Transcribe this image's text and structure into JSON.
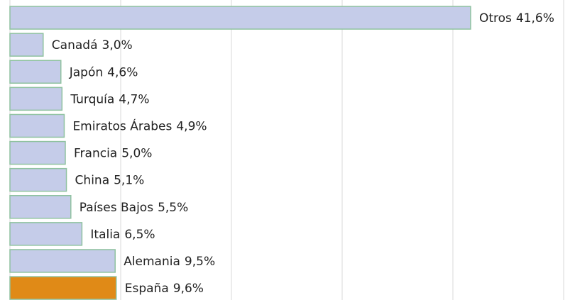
{
  "chart_data": {
    "type": "barh",
    "categories": [
      "Otros",
      "Canadá",
      "Japón",
      "Turquía",
      "Emiratos Árabes",
      "Francia",
      "China",
      "Países Bajos",
      "Italia",
      "Alemania",
      "España"
    ],
    "values": [
      41.6,
      3.0,
      4.6,
      4.7,
      4.9,
      5.0,
      5.1,
      5.5,
      6.5,
      9.5,
      9.6
    ],
    "value_labels": [
      "41,6%",
      "3,0%",
      "4,6%",
      "4,7%",
      "4,9%",
      "5,0%",
      "5,1%",
      "5,5%",
      "6,5%",
      "9,5%",
      "9,6%"
    ],
    "colors": [
      "#c5cce9",
      "#c5cce9",
      "#c5cce9",
      "#c5cce9",
      "#c5cce9",
      "#c5cce9",
      "#c5cce9",
      "#c5cce9",
      "#c5cce9",
      "#c5cce9",
      "#e08a17"
    ],
    "xlim": [
      0,
      50
    ],
    "xticks": [
      0,
      10,
      20,
      30,
      40,
      50
    ],
    "grid": true
  }
}
